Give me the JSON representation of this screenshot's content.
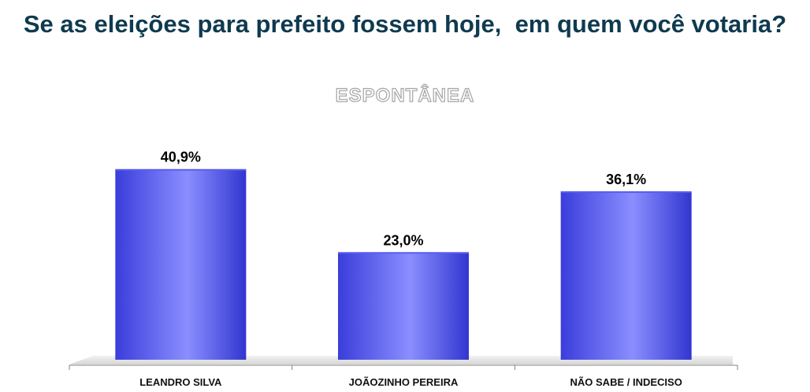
{
  "title": "Se as eleições para prefeito fossem hoje,  em quem você votaria?",
  "subtitle": "ESPONTÂNEA",
  "colors": {
    "bar_dark": "#3b3fe0",
    "bar_light": "#8a8eff",
    "title": "#0f3a4f"
  },
  "chart_data": {
    "type": "bar",
    "categories": [
      "LEANDRO SILVA",
      "JOÃOZINHO PEREIRA",
      "NÃO SABE / INDECISO"
    ],
    "values": [
      40.9,
      23.0,
      36.1
    ],
    "value_labels": [
      "40,9%",
      "23,0%",
      "36,1%"
    ],
    "title": "Se as eleições para prefeito fossem hoje,  em quem você votaria?",
    "subtitle": "ESPONTÂNEA",
    "ylim": [
      0,
      50
    ],
    "grid": false,
    "legend": "none"
  }
}
